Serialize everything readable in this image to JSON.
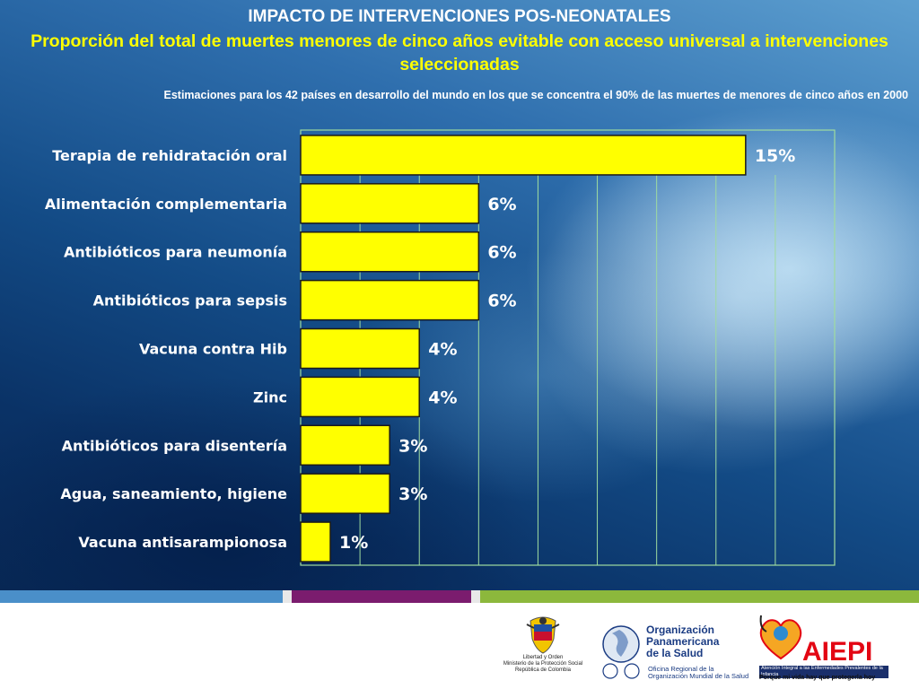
{
  "header": {
    "title": "IMPACTO DE INTERVENCIONES POS-NEONATALES",
    "subtitle": "Proporción del total de muertes menores de cinco años evitable con acceso universal a intervenciones seleccionadas",
    "note": "Estimaciones para los 42 países en desarrollo del mundo en los que se concentra el 90% de las muertes de menores de cinco años en 2000"
  },
  "chart_data": {
    "type": "bar",
    "orientation": "horizontal",
    "categories": [
      "Terapia de rehidratación oral",
      "Alimentación complementaria",
      "Antibióticos para neumonía",
      "Antibióticos para sepsis",
      "Vacuna contra Hib",
      "Zinc",
      "Antibióticos para disentería",
      "Agua, saneamiento, higiene",
      "Vacuna antisarampionosa"
    ],
    "values": [
      15,
      6,
      6,
      6,
      4,
      4,
      3,
      3,
      1
    ],
    "value_labels": [
      "15%",
      "6%",
      "6%",
      "6%",
      "4%",
      "4%",
      "3%",
      "3%",
      "1%"
    ],
    "unit": "%",
    "xlim": [
      0,
      18
    ],
    "grid": true,
    "bar_color": "#ffff00",
    "gridline_color": "#9fdc9f"
  },
  "colors": {
    "title": "#ffffff",
    "subtitle": "#ffff00",
    "stripe": [
      "#4a8fc9",
      "#e8e8e8",
      "#7b1c6e",
      "#e8e8e8",
      "#8cb83c",
      "#e8e8e8"
    ]
  },
  "footer": {
    "colombia": {
      "line1": "Libertad y Orden",
      "line2": "Ministerio de la Protección Social",
      "line3": "República de Colombia"
    },
    "ops": {
      "name_line1": "Organización",
      "name_line2": "Panamericana",
      "name_line3": "de la Salud",
      "oms_line1": "Oficina Regional de la",
      "oms_line2": "Organización Mundial de la Salud"
    },
    "aiepi": {
      "word": "AIEPI",
      "tagline": "Atención Integral a las Enfermedades Prevalentes de la Infancia",
      "slogan": "Porque mi vida hay que protegerla hoy"
    }
  }
}
